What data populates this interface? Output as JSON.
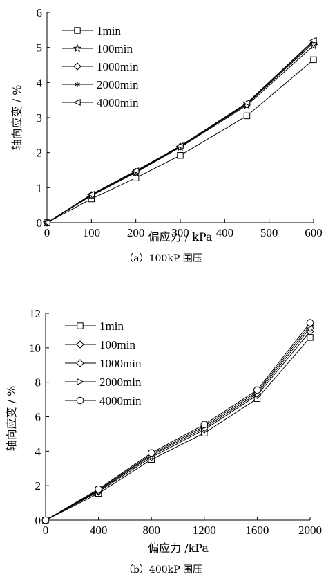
{
  "chart_data": [
    {
      "type": "line",
      "caption": "（a）100kP 围压",
      "xlabel": "偏应力 / kPa",
      "ylabel": "轴向应变 / %",
      "xlim": [
        0,
        600
      ],
      "ylim": [
        0,
        6
      ],
      "xticks": [
        0,
        100,
        200,
        300,
        400,
        500,
        600
      ],
      "yticks": [
        0,
        1,
        2,
        3,
        4,
        5,
        6
      ],
      "legend_position": "top-left",
      "x": [
        0,
        100,
        200,
        300,
        450,
        600
      ],
      "series": [
        {
          "name": "1min",
          "marker": "square",
          "values": [
            0,
            0.68,
            1.28,
            1.92,
            3.05,
            4.65
          ]
        },
        {
          "name": "100min",
          "marker": "star",
          "values": [
            0,
            0.77,
            1.43,
            2.15,
            3.35,
            5.05
          ]
        },
        {
          "name": "1000min",
          "marker": "diamond",
          "values": [
            0,
            0.79,
            1.45,
            2.17,
            3.38,
            5.13
          ]
        },
        {
          "name": "2000min",
          "marker": "asterisk",
          "values": [
            0,
            0.8,
            1.47,
            2.18,
            3.4,
            5.17
          ]
        },
        {
          "name": "4000min",
          "marker": "triangle-left",
          "values": [
            0,
            0.81,
            1.48,
            2.19,
            3.42,
            5.2
          ]
        }
      ]
    },
    {
      "type": "line",
      "caption": "（b）400kP 围压",
      "xlabel": "偏应力 /kPa",
      "ylabel": "轴向应变 / %",
      "xlim": [
        0,
        2000
      ],
      "ylim": [
        0,
        12
      ],
      "xticks": [
        0,
        400,
        800,
        1200,
        1600,
        2000
      ],
      "yticks": [
        0,
        2,
        4,
        6,
        8,
        10,
        12
      ],
      "legend_position": "top-left",
      "x": [
        0,
        400,
        800,
        1200,
        1600,
        2000
      ],
      "series": [
        {
          "name": "1min",
          "marker": "square",
          "values": [
            0,
            1.55,
            3.52,
            5.05,
            7.05,
            10.6
          ]
        },
        {
          "name": "100min",
          "marker": "diamond",
          "values": [
            0,
            1.65,
            3.65,
            5.25,
            7.25,
            10.95
          ]
        },
        {
          "name": "1000min",
          "marker": "diamond",
          "values": [
            0,
            1.7,
            3.75,
            5.35,
            7.35,
            11.15
          ]
        },
        {
          "name": "2000min",
          "marker": "triangle-right",
          "values": [
            0,
            1.75,
            3.82,
            5.45,
            7.45,
            11.3
          ]
        },
        {
          "name": "4000min",
          "marker": "circle",
          "values": [
            0,
            1.8,
            3.9,
            5.55,
            7.55,
            11.45
          ]
        }
      ]
    }
  ]
}
